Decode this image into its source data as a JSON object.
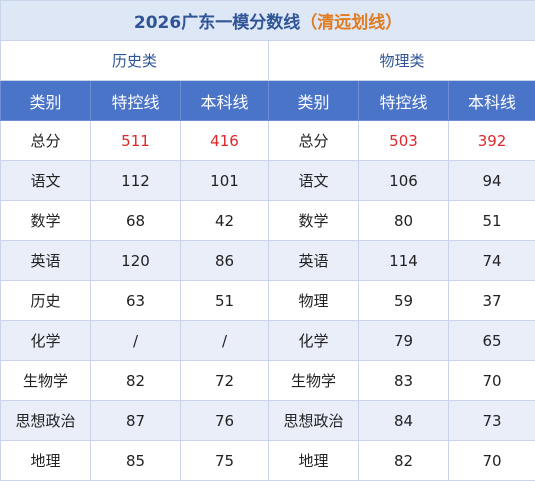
{
  "title": {
    "main": "2026广东一模分数线",
    "sub": "（清远划线）"
  },
  "groups": [
    "历史类",
    "物理类"
  ],
  "table": {
    "header": [
      "类别",
      "特控线",
      "本科线",
      "类别",
      "特控线",
      "本科线"
    ],
    "rows": [
      [
        "总分",
        "511",
        "416",
        "总分",
        "503",
        "392"
      ],
      [
        "语文",
        "112",
        "101",
        "语文",
        "106",
        "94"
      ],
      [
        "数学",
        "68",
        "42",
        "数学",
        "80",
        "51"
      ],
      [
        "英语",
        "120",
        "86",
        "英语",
        "114",
        "74"
      ],
      [
        "历史",
        "63",
        "51",
        "物理",
        "59",
        "37"
      ],
      [
        "化学",
        "/",
        "/",
        "化学",
        "79",
        "65"
      ],
      [
        "生物学",
        "82",
        "72",
        "生物学",
        "83",
        "70"
      ],
      [
        "思想政治",
        "87",
        "76",
        "思想政治",
        "84",
        "73"
      ],
      [
        "地理",
        "85",
        "75",
        "地理",
        "82",
        "70"
      ]
    ]
  }
}
